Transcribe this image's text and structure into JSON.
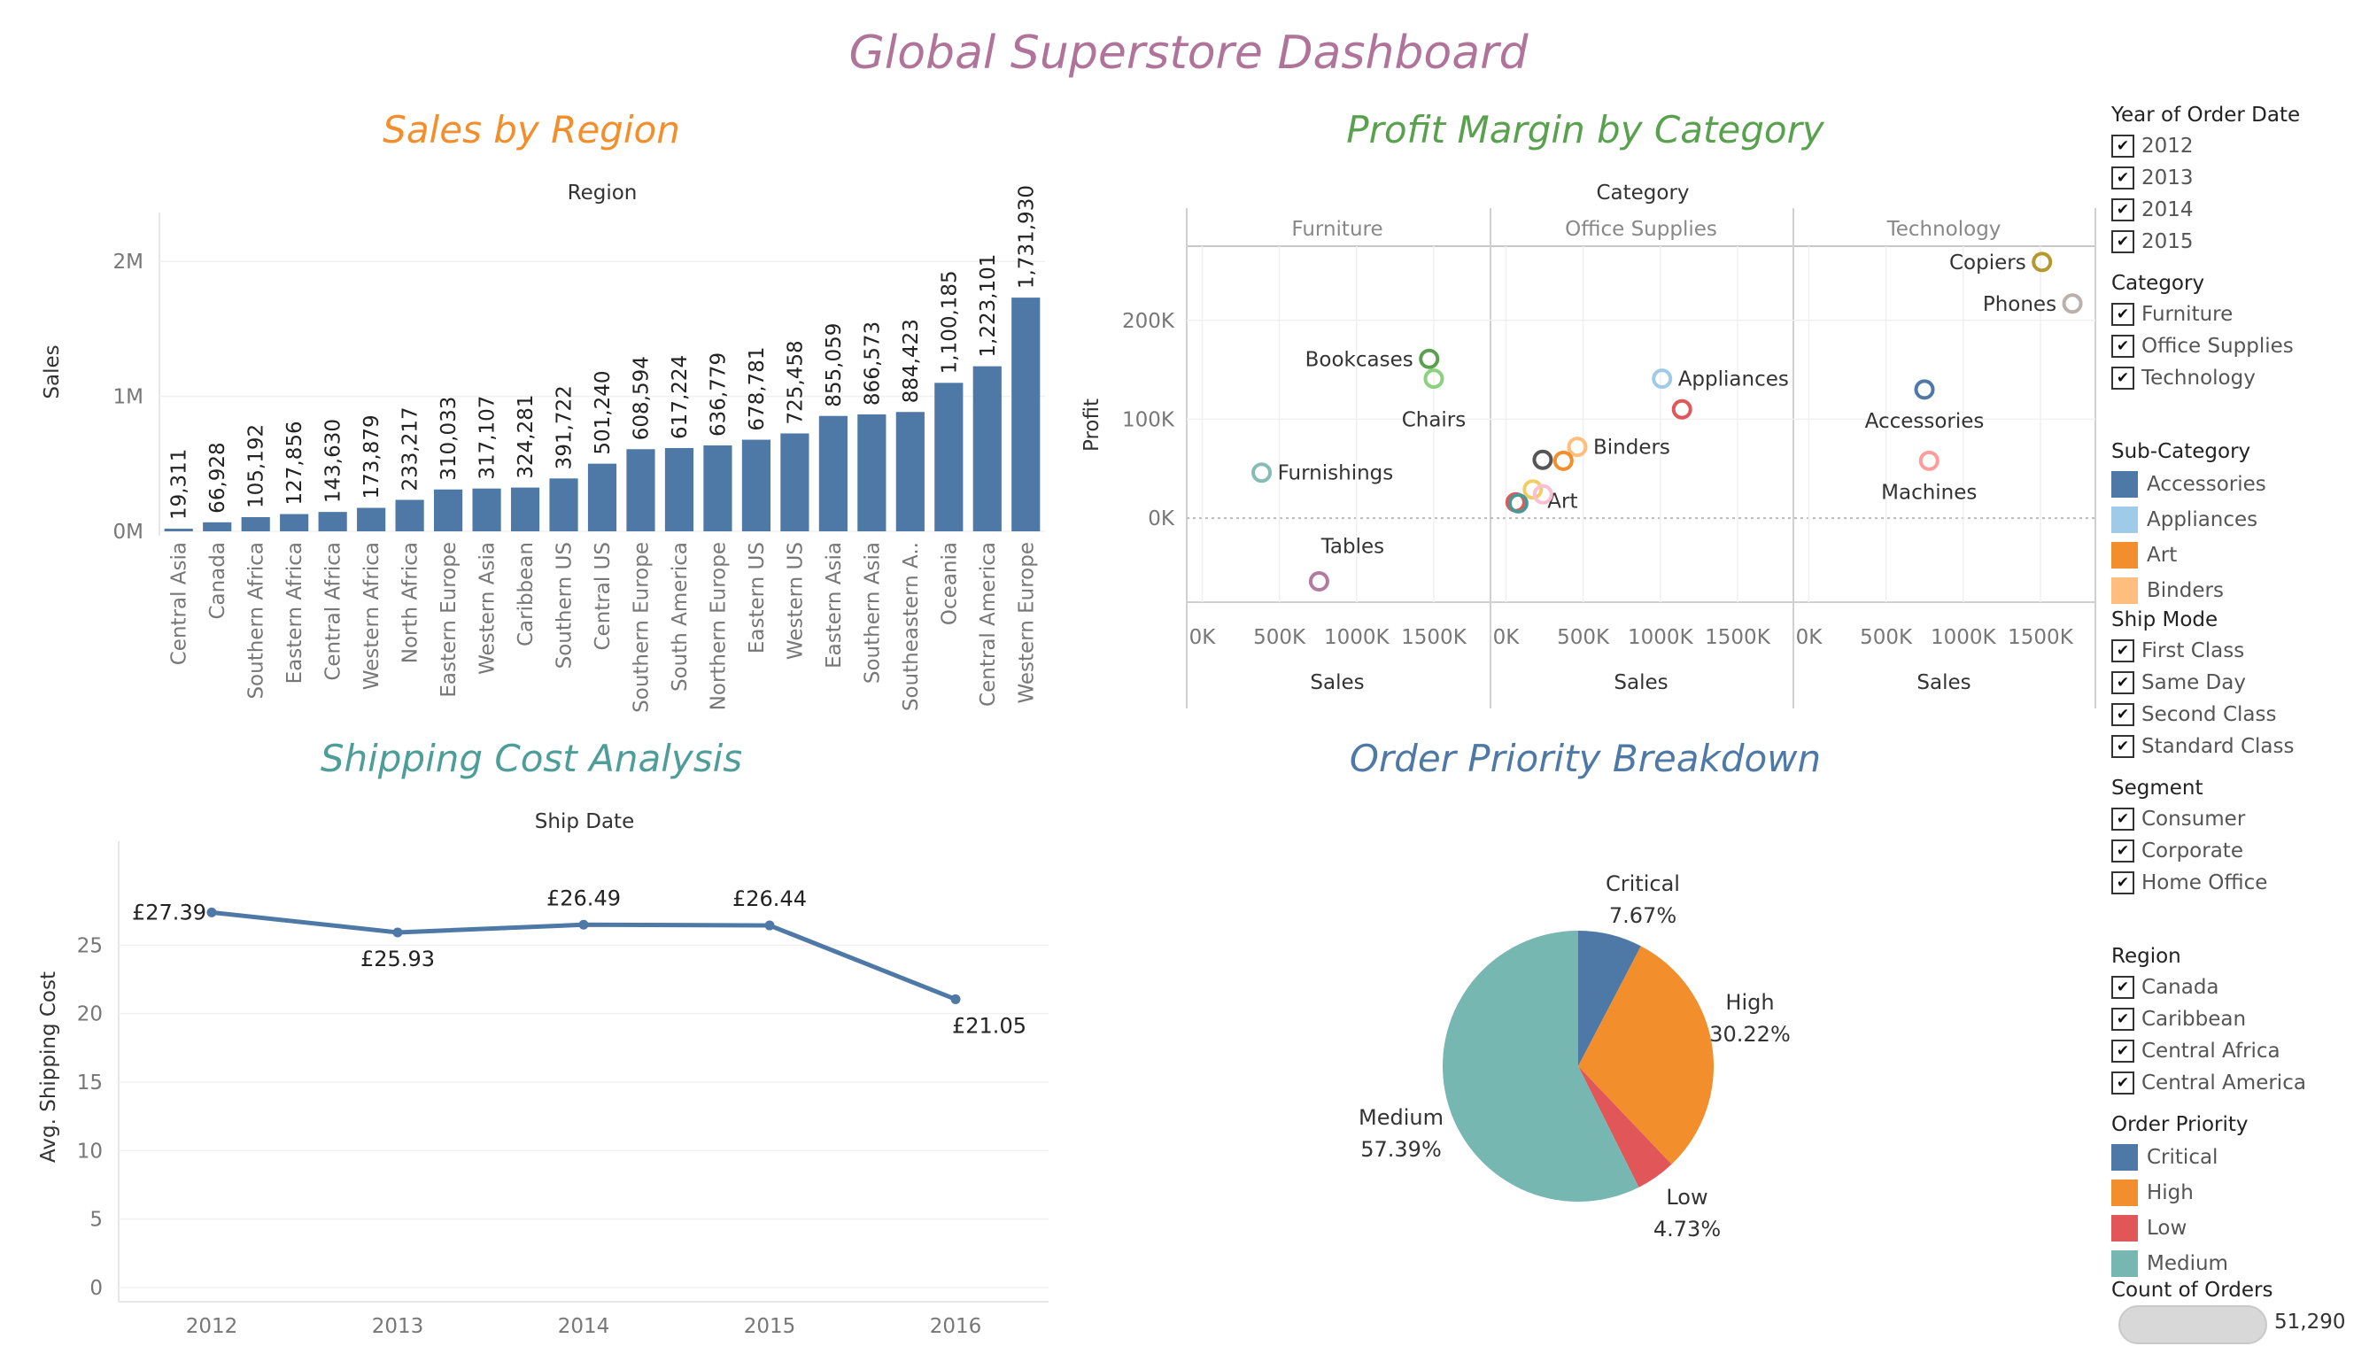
{
  "dashboard_title": "Global Superstore Dashboard",
  "colors": {
    "title": "#b0739a",
    "sales_title": "#f28e2b",
    "profit_title": "#59a14f",
    "shipping_title": "#4e9d99",
    "priority_title": "#4e79a7",
    "bar": "#4e79a7",
    "line": "#4e79a7"
  },
  "chart_data": [
    {
      "type": "bar",
      "title": "Sales by Region",
      "header": "Region",
      "ylabel": "Sales",
      "ylim": [
        0,
        2100000
      ],
      "yticks": [
        {
          "v": 0,
          "label": "0M"
        },
        {
          "v": 1000000,
          "label": "1M"
        },
        {
          "v": 2000000,
          "label": "2M"
        }
      ],
      "categories": [
        "Central Asia",
        "Canada",
        "Southern Africa",
        "Eastern Africa",
        "Central Africa",
        "Western Africa",
        "North Africa",
        "Eastern Europe",
        "Western Asia",
        "Caribbean",
        "Southern US",
        "Central US",
        "Southern Europe",
        "South America",
        "Northern Europe",
        "Eastern US",
        "Western US",
        "Eastern Asia",
        "Southern Asia",
        "Southeastern A..",
        "Oceania",
        "Central America",
        "Western Europe"
      ],
      "values": [
        19311,
        66928,
        105192,
        127856,
        143630,
        173879,
        233217,
        310033,
        317107,
        324281,
        391722,
        501240,
        608594,
        617224,
        636779,
        678781,
        725458,
        855059,
        866573,
        884423,
        1100185,
        1223101,
        1731930
      ],
      "labels": [
        "19,311",
        "66,928",
        "105,192",
        "127,856",
        "143,630",
        "173,879",
        "233,217",
        "310,033",
        "317,107",
        "324,281",
        "391,722",
        "501,240",
        "608,594",
        "617,224",
        "636,779",
        "678,781",
        "725,458",
        "855,059",
        "866,573",
        "884,423",
        "1,100,185",
        "1,223,101",
        "1,731,930"
      ]
    },
    {
      "type": "scatter",
      "title": "Profit Margin by Category",
      "header": "Category",
      "xlabel": "Sales",
      "ylabel": "Profit",
      "ylim": [
        -85000,
        275000
      ],
      "xlim": [
        -100000,
        1850000
      ],
      "yticks": [
        {
          "v": 0,
          "label": "0K"
        },
        {
          "v": 100000,
          "label": "100K"
        },
        {
          "v": 200000,
          "label": "200K"
        }
      ],
      "xticks": [
        {
          "v": 0,
          "label": "0K"
        },
        {
          "v": 500000,
          "label": "500K"
        },
        {
          "v": 1000000,
          "label": "1000K"
        },
        {
          "v": 1500000,
          "label": "1500K"
        }
      ],
      "panels": [
        {
          "name": "Furniture",
          "points": [
            {
              "label": "Bookcases",
              "x": 1470000,
              "y": 161000,
              "color": "#59a14f"
            },
            {
              "label": "Chairs",
              "x": 1500000,
              "y": 141000,
              "color": "#8cd17d"
            },
            {
              "label": "Furnishings",
              "x": 385000,
              "y": 46000,
              "color": "#86bcb6"
            },
            {
              "label": "Tables",
              "x": 757000,
              "y": -64000,
              "color": "#b07aa1"
            }
          ]
        },
        {
          "name": "Office Supplies",
          "points": [
            {
              "label": "Appliances",
              "x": 1011000,
              "y": 141000,
              "color": "#a0cbe8"
            },
            {
              "label": "",
              "x": 1140000,
              "y": 110000,
              "color": "#e15759"
            },
            {
              "label": "Binders",
              "x": 462000,
              "y": 72000,
              "color": "#ffbe7d"
            },
            {
              "label": "Art",
              "x": 372000,
              "y": 58000,
              "color": "#f28e2b"
            },
            {
              "label": "",
              "x": 238000,
              "y": 59000,
              "color": "#555555"
            },
            {
              "label": "",
              "x": 174000,
              "y": 29000,
              "color": "#f1ce63"
            },
            {
              "label": "",
              "x": 240000,
              "y": 24000,
              "color": "#fabfd2"
            },
            {
              "label": "",
              "x": 63000,
              "y": 16000,
              "color": "#e15759"
            },
            {
              "label": "",
              "x": 80000,
              "y": 15000,
              "color": "#499894"
            }
          ]
        },
        {
          "name": "Technology",
          "points": [
            {
              "label": "Copiers",
              "x": 1510000,
              "y": 259000,
              "color": "#b6992d"
            },
            {
              "label": "Phones",
              "x": 1707000,
              "y": 217000,
              "color": "#bab0ac"
            },
            {
              "label": "Accessories",
              "x": 749000,
              "y": 130000,
              "color": "#4e79a7"
            },
            {
              "label": "Machines",
              "x": 779000,
              "y": 58000,
              "color": "#ff9d9a"
            }
          ]
        }
      ]
    },
    {
      "type": "line",
      "title": "Shipping Cost Analysis",
      "header": "Ship Date",
      "ylabel": "Avg. Shipping Cost",
      "ylim": [
        0,
        30
      ],
      "yticks": [
        0,
        5,
        10,
        15,
        20,
        25
      ],
      "x": [
        "2012",
        "2013",
        "2014",
        "2015",
        "2016"
      ],
      "values": [
        27.39,
        25.93,
        26.49,
        26.44,
        21.05
      ],
      "labels": [
        "£27.39",
        "£25.93",
        "£26.49",
        "£26.44",
        "£21.05"
      ]
    },
    {
      "type": "pie",
      "title": "Order Priority Breakdown",
      "slices": [
        {
          "name": "Critical",
          "value": 7.67,
          "label": "7.67%",
          "color": "#4e79a7"
        },
        {
          "name": "High",
          "value": 30.22,
          "label": "30.22%",
          "color": "#f28e2b"
        },
        {
          "name": "Low",
          "value": 4.73,
          "label": "4.73%",
          "color": "#e15759"
        },
        {
          "name": "Medium",
          "value": 57.39,
          "label": "57.39%",
          "color": "#76b7b2"
        }
      ]
    }
  ],
  "filters": [
    {
      "title": "Year of Order Date",
      "kind": "check",
      "items": [
        "2012",
        "2013",
        "2014",
        "2015"
      ]
    },
    {
      "title": "Category",
      "kind": "check",
      "items": [
        "Furniture",
        "Office Supplies",
        "Technology"
      ]
    },
    {
      "title": "Sub-Category",
      "kind": "legend",
      "items": [
        {
          "name": "Accessories",
          "color": "#4e79a7"
        },
        {
          "name": "Appliances",
          "color": "#a0cbe8"
        },
        {
          "name": "Art",
          "color": "#f28e2b"
        },
        {
          "name": "Binders",
          "color": "#ffbe7d"
        }
      ]
    },
    {
      "title": "Ship Mode",
      "kind": "check",
      "items": [
        "First Class",
        "Same Day",
        "Second Class",
        "Standard Class"
      ]
    },
    {
      "title": "Segment",
      "kind": "check",
      "items": [
        "Consumer",
        "Corporate",
        "Home Office"
      ]
    },
    {
      "title": "Region",
      "kind": "check",
      "items": [
        "Canada",
        "Caribbean",
        "Central Africa",
        "Central America"
      ]
    },
    {
      "title": "Order Priority",
      "kind": "legend",
      "items": [
        {
          "name": "Critical",
          "color": "#4e79a7"
        },
        {
          "name": "High",
          "color": "#f28e2b"
        },
        {
          "name": "Low",
          "color": "#e15759"
        },
        {
          "name": "Medium",
          "color": "#76b7b2"
        }
      ]
    }
  ],
  "count_filter": {
    "title": "Count of Orders",
    "value": "51,290"
  }
}
